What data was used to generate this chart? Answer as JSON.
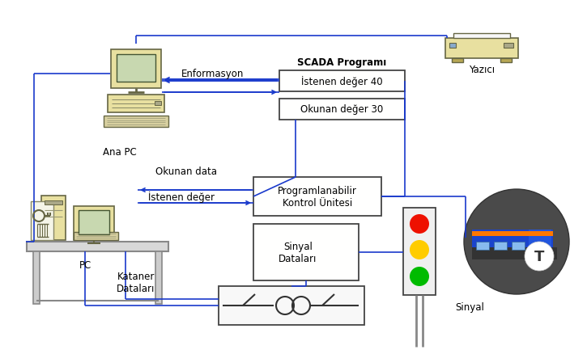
{
  "bg_color": "#ffffff",
  "components": {
    "ana_pc_label": "Ana PC",
    "pc_label": "PC",
    "yazici_label": "Yazıcı",
    "scada_label": "SCADA Programı",
    "istenen_deger": "İstenen değer 40",
    "okunan_deger": "Okunan değer 30",
    "enformasyon": "Enformasyon",
    "okunan_data": "Okunan data",
    "istenen_deger2": "İstenen değer",
    "programlanabilir": "Programlanabilir\nKontrol Ünitesi",
    "sinyal_data": "Sinyal\nDataları",
    "kataner_data": "Kataner\nDataları",
    "sinyal": "Sinyal",
    "t_label": "T"
  },
  "colors": {
    "box_fill": "#fffff0",
    "box_edge": "#444444",
    "arrow": "#1a3acc",
    "line": "#1a3acc",
    "monitor_body": "#e8e0a0",
    "monitor_screen": "#c8d8b0",
    "keyboard": "#d8d0a0",
    "red_light": "#ee1100",
    "yellow_light": "#ffcc00",
    "green_light": "#00bb00",
    "traffic_box": "#f0f0f0",
    "traffic_pole": "#888888",
    "train_circle_bg": "#555555",
    "text_color": "#000000",
    "desk_color": "#c8c8c8",
    "leg_color": "#aaaaaa"
  }
}
